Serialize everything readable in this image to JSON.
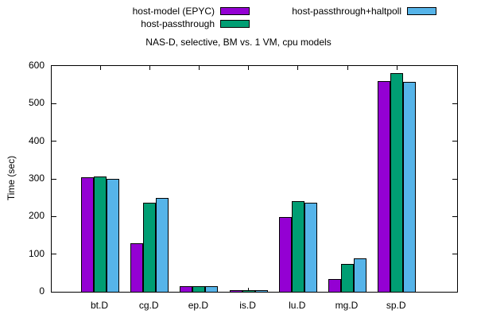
{
  "chart_data": {
    "type": "bar",
    "title": "NAS-D, selective, BM vs. 1 VM, cpu models",
    "xlabel": "",
    "ylabel": "Time (sec)",
    "ylim": [
      0,
      600
    ],
    "yticks": [
      0,
      100,
      200,
      300,
      400,
      500,
      600
    ],
    "grid": false,
    "legend_position": "top",
    "categories": [
      "bt.D",
      "cg.D",
      "ep.D",
      "is.D",
      "lu.D",
      "mg.D",
      "sp.D"
    ],
    "series": [
      {
        "name": "host-model (EPYC)",
        "color": "#9400d3",
        "values": [
          304,
          128,
          15,
          5,
          199,
          33,
          559
        ]
      },
      {
        "name": "host-passthrough",
        "color": "#009e73",
        "values": [
          306,
          237,
          15,
          5,
          241,
          73,
          581
        ]
      },
      {
        "name": "host-passthrough+haltpoll",
        "color": "#56b4e9",
        "values": [
          300,
          249,
          15,
          5,
          237,
          88,
          557
        ]
      }
    ]
  }
}
